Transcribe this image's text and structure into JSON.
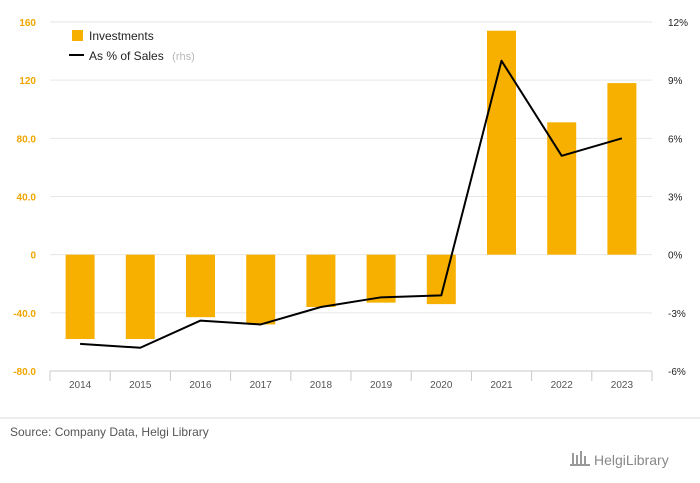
{
  "chart_data": {
    "type": "bar",
    "categories": [
      "2014",
      "2015",
      "2016",
      "2017",
      "2018",
      "2019",
      "2020",
      "2021",
      "2022",
      "2023"
    ],
    "series": [
      {
        "name": "Investments",
        "type": "bar",
        "axis": "left",
        "values": [
          -58,
          -58,
          -43,
          -48,
          -36,
          -33,
          -34,
          154,
          91,
          118
        ]
      },
      {
        "name": "As % of Sales",
        "type": "line",
        "axis": "right",
        "values": [
          -4.6,
          -4.8,
          -3.4,
          -3.6,
          -2.7,
          -2.2,
          -2.1,
          10.0,
          5.1,
          6.0
        ]
      }
    ],
    "left_axis": {
      "ticks": [
        "160",
        "120",
        "80.0",
        "40.0",
        "0",
        "-40.0",
        "-80.0"
      ],
      "ylim": [
        -80,
        160
      ]
    },
    "right_axis": {
      "ticks": [
        "12%",
        "9%",
        "6%",
        "3%",
        "0%",
        "-3%",
        "-6%"
      ],
      "ylim": [
        -6,
        12
      ]
    },
    "legend": {
      "items": [
        "Investments",
        "As % of Sales"
      ],
      "rhs_note": "(rhs)",
      "placement": "top-left"
    },
    "grid": true,
    "colors": {
      "bar": "#f7b000",
      "line": "#000000",
      "left_ticks": "#f0a500"
    }
  },
  "footer": {
    "source": "Source: Company Data, Helgi Library",
    "brand": "HelgiLibrary"
  }
}
